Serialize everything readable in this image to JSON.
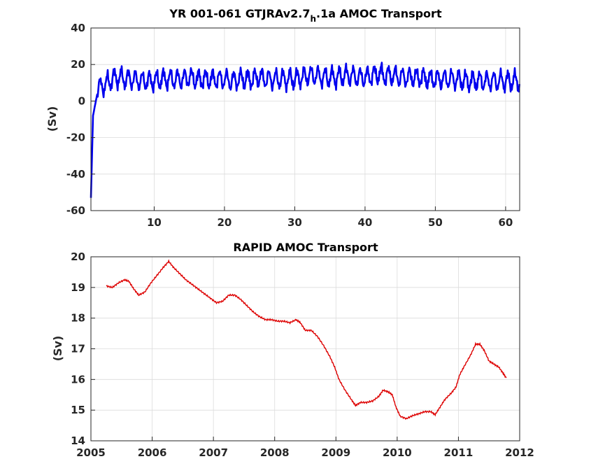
{
  "chart_data": [
    {
      "type": "line",
      "title": "YR 001-061 GTJRAv2.7",
      "title_subscript": "h",
      "title_suffix": ".1a AMOC Transport",
      "xlabel": "",
      "ylabel": "(Sv)",
      "xlim": [
        1,
        62
      ],
      "ylim": [
        -60,
        40
      ],
      "xticks": [
        10,
        20,
        30,
        40,
        50,
        60
      ],
      "yticks": [
        -60,
        -40,
        -20,
        0,
        20,
        40
      ],
      "grid": true,
      "series": [
        {
          "color": "#0000ee",
          "annual_mean": [
            {
              "x": 1,
              "y": -53
            },
            {
              "x": 1.3,
              "y": 3
            },
            {
              "x": 2,
              "y": 7
            },
            {
              "x": 3,
              "y": 9
            },
            {
              "x": 4,
              "y": 12
            },
            {
              "x": 5,
              "y": 13
            },
            {
              "x": 6,
              "y": 12
            },
            {
              "x": 7,
              "y": 12
            },
            {
              "x": 8,
              "y": 11
            },
            {
              "x": 9,
              "y": 11
            },
            {
              "x": 10,
              "y": 11
            },
            {
              "x": 11,
              "y": 12
            },
            {
              "x": 12,
              "y": 12
            },
            {
              "x": 13,
              "y": 12
            },
            {
              "x": 14,
              "y": 12
            },
            {
              "x": 15,
              "y": 13
            },
            {
              "x": 16,
              "y": 12
            },
            {
              "x": 17,
              "y": 12
            },
            {
              "x": 18,
              "y": 12
            },
            {
              "x": 19,
              "y": 12
            },
            {
              "x": 20,
              "y": 12
            },
            {
              "x": 21,
              "y": 11
            },
            {
              "x": 22,
              "y": 12
            },
            {
              "x": 23,
              "y": 12
            },
            {
              "x": 24,
              "y": 12
            },
            {
              "x": 25,
              "y": 13
            },
            {
              "x": 26,
              "y": 12
            },
            {
              "x": 27,
              "y": 12
            },
            {
              "x": 28,
              "y": 12
            },
            {
              "x": 29,
              "y": 12
            },
            {
              "x": 30,
              "y": 12
            },
            {
              "x": 31,
              "y": 13
            },
            {
              "x": 32,
              "y": 14
            },
            {
              "x": 33,
              "y": 14
            },
            {
              "x": 34,
              "y": 13
            },
            {
              "x": 35,
              "y": 13
            },
            {
              "x": 36,
              "y": 13
            },
            {
              "x": 37,
              "y": 14
            },
            {
              "x": 38,
              "y": 14
            },
            {
              "x": 39,
              "y": 13
            },
            {
              "x": 40,
              "y": 13
            },
            {
              "x": 41,
              "y": 14
            },
            {
              "x": 42,
              "y": 15
            },
            {
              "x": 43,
              "y": 14
            },
            {
              "x": 44,
              "y": 14
            },
            {
              "x": 45,
              "y": 13
            },
            {
              "x": 46,
              "y": 13
            },
            {
              "x": 47,
              "y": 13
            },
            {
              "x": 48,
              "y": 13
            },
            {
              "x": 49,
              "y": 12
            },
            {
              "x": 50,
              "y": 12
            },
            {
              "x": 51,
              "y": 12
            },
            {
              "x": 52,
              "y": 12
            },
            {
              "x": 53,
              "y": 12
            },
            {
              "x": 54,
              "y": 11
            },
            {
              "x": 55,
              "y": 11
            },
            {
              "x": 56,
              "y": 11
            },
            {
              "x": 57,
              "y": 11
            },
            {
              "x": 58,
              "y": 11
            },
            {
              "x": 59,
              "y": 11
            },
            {
              "x": 60,
              "y": 11
            },
            {
              "x": 61,
              "y": 11
            },
            {
              "x": 62,
              "y": 11
            }
          ],
          "seasonal_amplitude": 4.5
        }
      ]
    },
    {
      "type": "line",
      "title": "RAPID AMOC Transport",
      "xlabel": "",
      "ylabel": "(Sv)",
      "xlim": [
        2005,
        2012
      ],
      "ylim": [
        14,
        20
      ],
      "xticks": [
        2005,
        2006,
        2007,
        2008,
        2009,
        2010,
        2011,
        2012
      ],
      "yticks": [
        14,
        15,
        16,
        17,
        18,
        19,
        20
      ],
      "grid": true,
      "series": [
        {
          "color": "#dd0000",
          "points": [
            {
              "x": 2005.25,
              "y": 19.05
            },
            {
              "x": 2005.35,
              "y": 19.0
            },
            {
              "x": 2005.45,
              "y": 19.15
            },
            {
              "x": 2005.55,
              "y": 19.25
            },
            {
              "x": 2005.62,
              "y": 19.2
            },
            {
              "x": 2005.7,
              "y": 18.95
            },
            {
              "x": 2005.78,
              "y": 18.75
            },
            {
              "x": 2005.88,
              "y": 18.85
            },
            {
              "x": 2005.98,
              "y": 19.15
            },
            {
              "x": 2006.08,
              "y": 19.4
            },
            {
              "x": 2006.18,
              "y": 19.65
            },
            {
              "x": 2006.27,
              "y": 19.85
            },
            {
              "x": 2006.35,
              "y": 19.65
            },
            {
              "x": 2006.45,
              "y": 19.45
            },
            {
              "x": 2006.55,
              "y": 19.25
            },
            {
              "x": 2006.65,
              "y": 19.1
            },
            {
              "x": 2006.75,
              "y": 18.95
            },
            {
              "x": 2006.85,
              "y": 18.8
            },
            {
              "x": 2006.95,
              "y": 18.65
            },
            {
              "x": 2007.05,
              "y": 18.5
            },
            {
              "x": 2007.15,
              "y": 18.55
            },
            {
              "x": 2007.25,
              "y": 18.75
            },
            {
              "x": 2007.35,
              "y": 18.75
            },
            {
              "x": 2007.45,
              "y": 18.6
            },
            {
              "x": 2007.55,
              "y": 18.4
            },
            {
              "x": 2007.65,
              "y": 18.2
            },
            {
              "x": 2007.75,
              "y": 18.05
            },
            {
              "x": 2007.85,
              "y": 17.95
            },
            {
              "x": 2007.95,
              "y": 17.95
            },
            {
              "x": 2008.05,
              "y": 17.9
            },
            {
              "x": 2008.15,
              "y": 17.9
            },
            {
              "x": 2008.25,
              "y": 17.85
            },
            {
              "x": 2008.35,
              "y": 17.95
            },
            {
              "x": 2008.42,
              "y": 17.85
            },
            {
              "x": 2008.5,
              "y": 17.6
            },
            {
              "x": 2008.6,
              "y": 17.6
            },
            {
              "x": 2008.7,
              "y": 17.4
            },
            {
              "x": 2008.8,
              "y": 17.1
            },
            {
              "x": 2008.9,
              "y": 16.75
            },
            {
              "x": 2008.98,
              "y": 16.4
            },
            {
              "x": 2009.05,
              "y": 16.0
            },
            {
              "x": 2009.15,
              "y": 15.65
            },
            {
              "x": 2009.25,
              "y": 15.35
            },
            {
              "x": 2009.32,
              "y": 15.15
            },
            {
              "x": 2009.4,
              "y": 15.25
            },
            {
              "x": 2009.5,
              "y": 15.25
            },
            {
              "x": 2009.6,
              "y": 15.3
            },
            {
              "x": 2009.7,
              "y": 15.45
            },
            {
              "x": 2009.77,
              "y": 15.65
            },
            {
              "x": 2009.85,
              "y": 15.6
            },
            {
              "x": 2009.92,
              "y": 15.5
            },
            {
              "x": 2009.98,
              "y": 15.1
            },
            {
              "x": 2010.05,
              "y": 14.8
            },
            {
              "x": 2010.15,
              "y": 14.72
            },
            {
              "x": 2010.25,
              "y": 14.82
            },
            {
              "x": 2010.35,
              "y": 14.88
            },
            {
              "x": 2010.45,
              "y": 14.95
            },
            {
              "x": 2010.55,
              "y": 14.95
            },
            {
              "x": 2010.62,
              "y": 14.85
            },
            {
              "x": 2010.7,
              "y": 15.1
            },
            {
              "x": 2010.78,
              "y": 15.35
            },
            {
              "x": 2010.88,
              "y": 15.55
            },
            {
              "x": 2010.96,
              "y": 15.75
            },
            {
              "x": 2011.02,
              "y": 16.15
            },
            {
              "x": 2011.1,
              "y": 16.45
            },
            {
              "x": 2011.2,
              "y": 16.8
            },
            {
              "x": 2011.28,
              "y": 17.15
            },
            {
              "x": 2011.35,
              "y": 17.15
            },
            {
              "x": 2011.42,
              "y": 16.95
            },
            {
              "x": 2011.5,
              "y": 16.6
            },
            {
              "x": 2011.58,
              "y": 16.5
            },
            {
              "x": 2011.66,
              "y": 16.4
            },
            {
              "x": 2011.73,
              "y": 16.2
            },
            {
              "x": 2011.78,
              "y": 16.05
            }
          ]
        }
      ]
    }
  ]
}
